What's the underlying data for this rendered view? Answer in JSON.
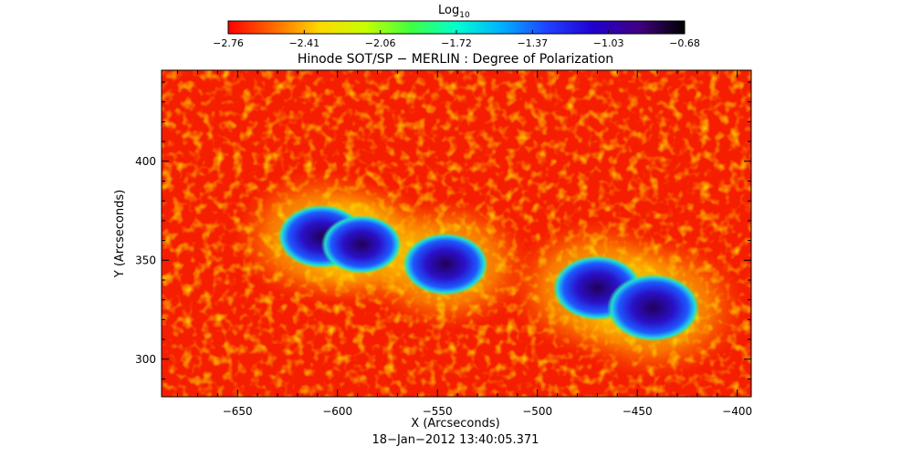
{
  "colorbar": {
    "title_main": "Log",
    "title_sub": "10",
    "ticks": [
      "−2.76",
      "−2.41",
      "−2.06",
      "−1.72",
      "−1.37",
      "−1.03",
      "−0.68"
    ],
    "colormap": [
      "#ff0000",
      "#ff6a00",
      "#ffd800",
      "#c8ff00",
      "#40ff40",
      "#00ffd0",
      "#00b0ff",
      "#2040ff",
      "#2000d0",
      "#400080",
      "#000000"
    ]
  },
  "chart_data": {
    "type": "heatmap",
    "title": "Hinode SOT/SP − MERLIN : Degree of Polarization",
    "xlabel": "X (Arcseconds)",
    "ylabel": "Y (Arcseconds)",
    "xlim": [
      -688,
      -393
    ],
    "ylim": [
      281,
      446
    ],
    "x_ticks": [
      -650,
      -600,
      -550,
      -500,
      -450,
      -400
    ],
    "y_ticks": [
      300,
      350,
      400
    ],
    "x_tick_labels": [
      "−650",
      "−600",
      "−550",
      "−500",
      "−450",
      "−400"
    ],
    "y_tick_labels": [
      "300",
      "350",
      "400"
    ],
    "value_range_log10": [
      -2.76,
      -0.68
    ],
    "features": [
      {
        "x": -608,
        "y": 362,
        "value_log10": -0.9
      },
      {
        "x": -588,
        "y": 358,
        "value_log10": -1.1
      },
      {
        "x": -546,
        "y": 348,
        "value_log10": -0.95
      },
      {
        "x": -470,
        "y": 336,
        "value_log10": -0.85
      },
      {
        "x": -442,
        "y": 326,
        "value_log10": -0.75
      }
    ]
  },
  "footer": {
    "timestamp": "18−Jan−2012 13:40:05.371"
  }
}
